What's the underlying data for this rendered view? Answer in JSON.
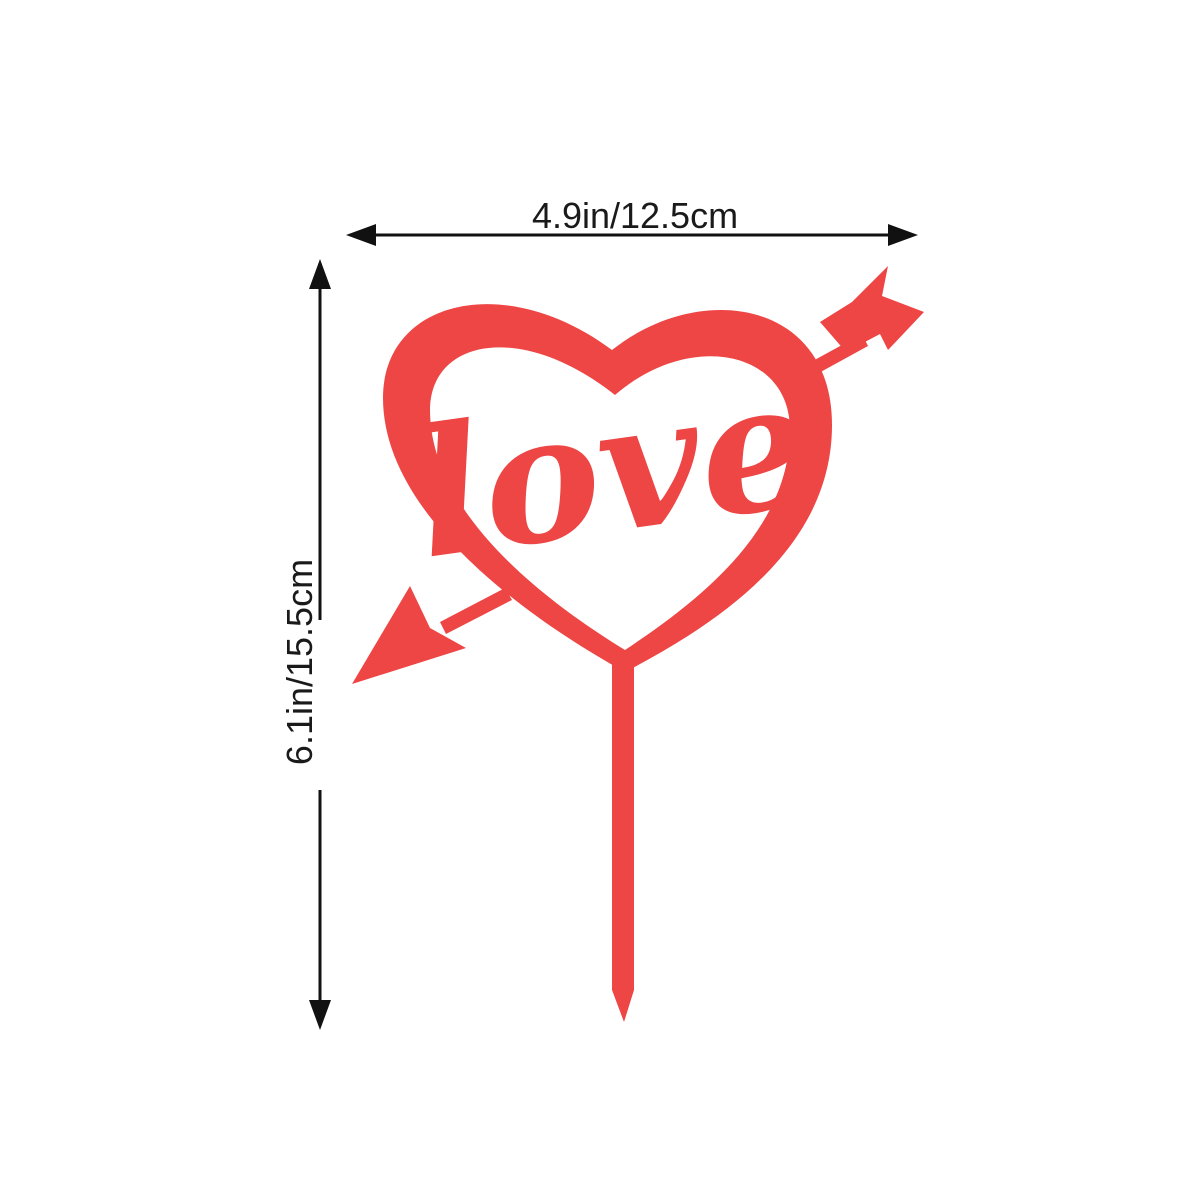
{
  "product": {
    "name": "love heart arrow cake topper",
    "color": "#ee4545",
    "lettering": "love"
  },
  "dimensions": {
    "width_label": "4.9in/12.5cm",
    "height_label": "6.1in/15.5cm",
    "line_color": "#111111"
  },
  "background": "#ffffff"
}
